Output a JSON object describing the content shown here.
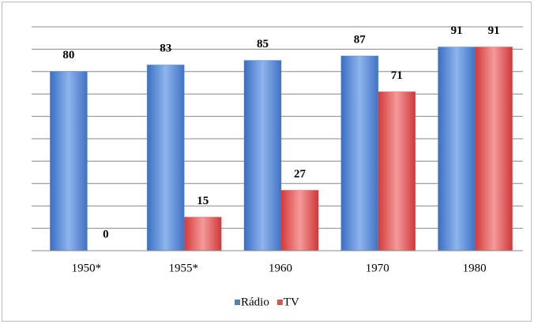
{
  "chart_data": {
    "type": "bar",
    "categories": [
      "1950*",
      "1955*",
      "1960",
      "1970",
      "1980"
    ],
    "series": [
      {
        "name": "Rádio",
        "color": "#4f81bd",
        "values": [
          80,
          83,
          85,
          87,
          91
        ]
      },
      {
        "name": "TV",
        "color": "#d9534f",
        "values": [
          0,
          15,
          27,
          71,
          91
        ]
      }
    ],
    "ylim": [
      0,
      100
    ],
    "yticks": [
      0,
      10,
      20,
      30,
      40,
      50,
      60,
      70,
      80,
      90,
      100
    ],
    "grid": true,
    "legend": "bottom"
  }
}
